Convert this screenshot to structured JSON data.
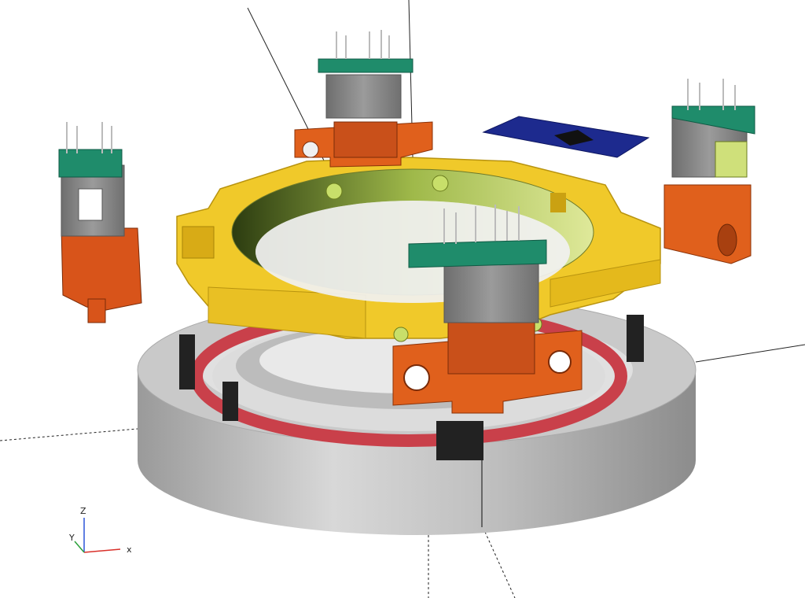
{
  "viewport": {
    "background": "#ffffff",
    "colors": {
      "base_ring": "#c9c9c9",
      "red_ring": "#c9404a",
      "yellow_ring": "#f0c92a",
      "inner_ring": "#cfe07a",
      "orange_block": "#e0601c",
      "grey_block": "#8a8a8a",
      "green_board": "#1f8c6b",
      "blue_board": "#1d2a8e",
      "black_part": "#222222"
    }
  },
  "axis_indicator": {
    "x_label": "x",
    "y_label": "Y",
    "z_label": "Z",
    "x_color": "#d9302a",
    "y_color": "#2aa03a",
    "z_color": "#2a54d9"
  }
}
